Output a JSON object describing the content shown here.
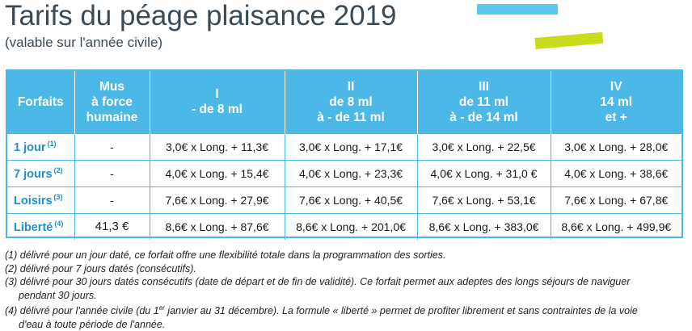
{
  "title": "Tarifs du péage plaisance 2019",
  "subtitle": "(valable sur l'année civile)",
  "table": {
    "headers": [
      {
        "lines": [
          "Forfaits"
        ]
      },
      {
        "lines": [
          "Mus",
          "à force",
          "humaine"
        ]
      },
      {
        "lines": [
          "I",
          "- de 8 ml"
        ]
      },
      {
        "lines": [
          "II",
          "de 8 ml",
          "à - de 11 ml"
        ]
      },
      {
        "lines": [
          "III",
          "de 11 ml",
          "à - de 14 ml"
        ]
      },
      {
        "lines": [
          "IV",
          "14 ml",
          "et +"
        ]
      }
    ],
    "rows": [
      {
        "label": "1 jour",
        "note": "(1)",
        "mus": "-",
        "cells": [
          "3,0€ x Long. + 11,3€",
          "3,0€ x Long. + 17,1€",
          "3,0€ x Long. + 22,5€",
          "3,0€ x Long. + 28,0€"
        ]
      },
      {
        "label": "7 jours",
        "note": "(2)",
        "mus": "-",
        "cells": [
          "4,0€ x Long. + 15,4€",
          "4,0€ x Long. + 23,3€",
          "4,0€ x Long. + 31,0 €",
          "4,0€ x Long. + 38,6€"
        ]
      },
      {
        "label": "Loisirs",
        "note": "(3)",
        "mus": "-",
        "cells": [
          "7,6€ x Long. + 27,9€",
          "7,6€ x Long. + 40,5€",
          "7,6€ x Long. + 53,1€",
          "7,6€ x Long. + 67,8€"
        ]
      },
      {
        "label": "Liberté",
        "note": "(4)",
        "mus": "41,3 €",
        "cells": [
          "8,6€ x Long. + 87,6€",
          "8,6€ x Long. + 201,0€",
          "8,6€ x Long. + 383,0€",
          "8,6€ x Long. + 499,9€"
        ]
      }
    ]
  },
  "notes": {
    "n1": "(1) délivré pour un jour daté, ce forfait offre une flexibilité totale dans la programmation des sorties.",
    "n2": "(2) délivré pour 7 jours datés (consécutifs).",
    "n3a": "(3) délivré pour 30 jours datés consécutifs (date de départ et de fin de validité). Ce forfait permet aux adeptes des longs séjours de naviguer",
    "n3b": "pendant 30 jours.",
    "n4a_pre": "(4) délivré pour l'année civile (du 1",
    "n4a_sup": "er",
    "n4a_post": " janvier au 31 décembre). La formule « liberté » permet de profiter librement et sans contraintes de la voie",
    "n4b": "d'eau à toute période de l'année."
  },
  "colors": {
    "header_bg": "#4cb8e8",
    "label_text": "#1e8fd0",
    "deco_blue": "#5bc8ee",
    "deco_green": "#c9dc1c",
    "title_text": "#3b4a55"
  }
}
